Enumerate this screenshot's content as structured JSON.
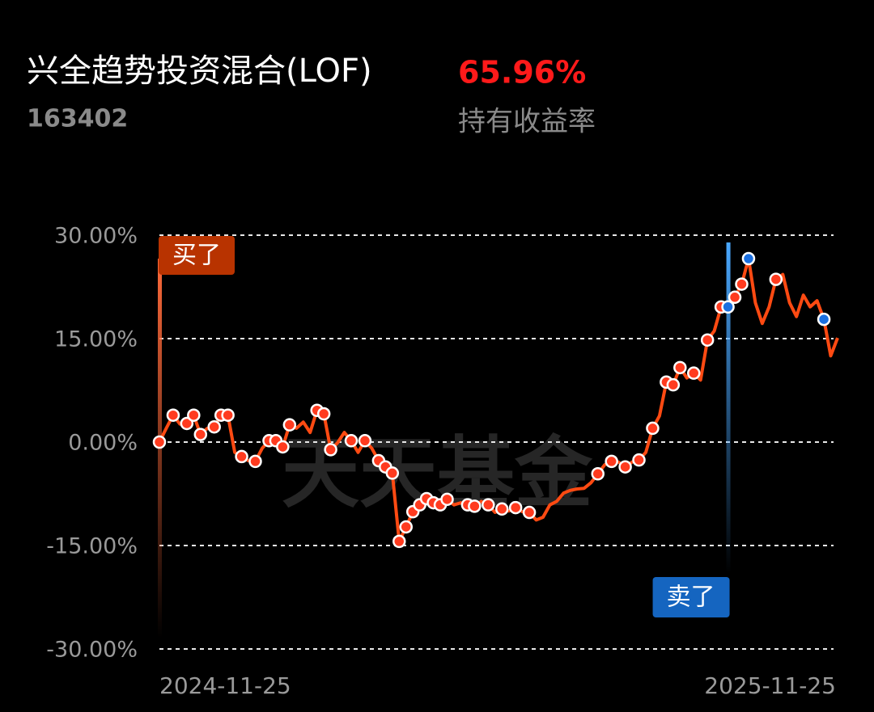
{
  "header": {
    "title": "兴全趋势投资混合(LOF)",
    "code": "163402",
    "return_value": "65.96%",
    "return_label": "持有收益率"
  },
  "watermark": "天天基金",
  "chart_data": {
    "type": "line",
    "categories": [
      "2024-11-25",
      null,
      null,
      null,
      null,
      null,
      null,
      null,
      null,
      null,
      null,
      null,
      null,
      null,
      null,
      null,
      null,
      null,
      null,
      null,
      null,
      null,
      null,
      null,
      null,
      null,
      null,
      null,
      null,
      null,
      null,
      null,
      null,
      null,
      null,
      null,
      null,
      null,
      null,
      null,
      null,
      null,
      null,
      null,
      null,
      null,
      null,
      null,
      null,
      null,
      null,
      null,
      null,
      null,
      null,
      null,
      null,
      null,
      null,
      null,
      null,
      null,
      null,
      null,
      null,
      null,
      null,
      null,
      null,
      null,
      null,
      null,
      null,
      null,
      null,
      null,
      null,
      null,
      null,
      null,
      null,
      null,
      null,
      null,
      null,
      null,
      null,
      null,
      null,
      null,
      null,
      null,
      null,
      null,
      null,
      null,
      null,
      null,
      null,
      "2025-11-25"
    ],
    "series": [
      {
        "color": "#ff4a12",
        "values": [
          0,
          2.0,
          3.9,
          2.6,
          2.7,
          3.9,
          1.1,
          2.0,
          2.2,
          3.9,
          3.9,
          -1.5,
          -2.1,
          -2.7,
          -2.8,
          -0.9,
          0.2,
          0.2,
          -0.7,
          2.5,
          2.0,
          2.9,
          1.4,
          4.6,
          4.1,
          -1.1,
          -0.1,
          1.4,
          0.2,
          -1.5,
          0.2,
          -0.9,
          -2.7,
          -3.6,
          -4.5,
          -14.4,
          -12.3,
          -10.1,
          -9.1,
          -8.2,
          -8.8,
          -9.1,
          -8.3,
          -9.1,
          -8.8,
          -9.1,
          -9.3,
          -8.6,
          -9.1,
          -10.2,
          -9.7,
          -10.0,
          -9.5,
          -10.1,
          -10.2,
          -11.3,
          -10.9,
          -9.1,
          -8.6,
          -7.4,
          -7.0,
          -6.8,
          -6.7,
          -5.9,
          -4.6,
          -3.3,
          -2.8,
          -2.9,
          -3.6,
          -2.9,
          -2.6,
          -1.5,
          2.0,
          3.8,
          8.7,
          8.3,
          10.8,
          9.3,
          10.0,
          9.0,
          14.8,
          16.1,
          19.6,
          19.6,
          21.0,
          22.9,
          26.6,
          20.2,
          17.2,
          19.6,
          23.6,
          24.3,
          20.2,
          18.2,
          21.3,
          19.6,
          20.5,
          17.8,
          12.5,
          15.1
        ]
      }
    ],
    "point_marks": [
      "buy",
      null,
      "buy",
      null,
      "buy",
      "buy",
      "buy",
      null,
      "buy",
      "buy",
      "buy",
      null,
      "buy",
      null,
      "buy",
      null,
      "buy",
      "buy",
      "buy",
      "buy",
      null,
      null,
      null,
      "buy",
      "buy",
      "buy",
      null,
      null,
      "buy",
      null,
      "buy",
      null,
      "buy",
      "buy",
      "buy",
      "buy",
      "buy",
      "buy",
      "buy",
      "buy",
      "buy",
      "buy",
      "buy",
      null,
      null,
      "buy",
      "buy",
      null,
      "buy",
      null,
      "buy",
      null,
      "buy",
      null,
      "buy",
      null,
      null,
      null,
      null,
      null,
      null,
      null,
      null,
      null,
      "buy",
      null,
      "buy",
      null,
      "buy",
      null,
      "buy",
      null,
      "buy",
      null,
      "buy",
      "buy",
      "buy",
      null,
      "buy",
      null,
      "buy",
      null,
      "buy",
      "sell",
      "buy",
      "buy",
      "sell",
      null,
      null,
      null,
      "buy",
      null,
      null,
      null,
      null,
      null,
      null,
      "sell",
      null,
      null
    ],
    "buy_color": "#ff3b1f",
    "sell_color": "#1a6fe0",
    "buy_label": "买了",
    "sell_label": "卖了",
    "ylim": [
      -30,
      30
    ],
    "yticks": [
      {
        "value": -30,
        "label": "-30.00%"
      },
      {
        "value": -15,
        "label": "-15.00%"
      },
      {
        "value": 0,
        "label": "0.00%"
      },
      {
        "value": 15,
        "label": "15.00%"
      },
      {
        "value": 30,
        "label": "30.00%"
      }
    ],
    "grid": true
  }
}
